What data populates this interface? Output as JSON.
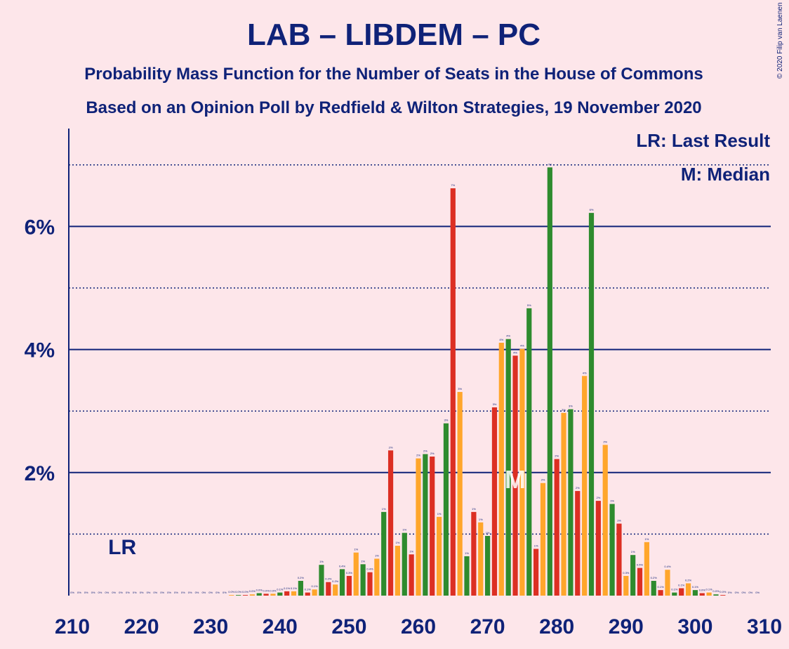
{
  "title": "LAB – LIBDEM – PC",
  "subtitle1": "Probability Mass Function for the Number of Seats in the House of Commons",
  "subtitle2": "Based on an Opinion Poll by Redfield & Wilton Strategies, 19 November 2020",
  "copyright": "© 2020 Filip van Laenen",
  "legend": {
    "lr": "LR: Last Result",
    "m": "M: Median"
  },
  "markers": {
    "lr_label": "LR",
    "lr_seats": 216,
    "m_label": "M",
    "median_seats": 274
  },
  "colors": {
    "background": "#fde6ea",
    "axis": "#0f2278",
    "green": "#2e8b2e",
    "red": "#dc2f23",
    "orange": "#ffa62b"
  },
  "chart_data": {
    "type": "bar",
    "xlabel": "",
    "ylabel": "",
    "xlim": [
      210,
      310
    ],
    "ylim": [
      0,
      7.5
    ],
    "yticks": [
      2,
      4,
      6
    ],
    "ytick_labels": [
      "2%",
      "4%",
      "6%"
    ],
    "xticks": [
      210,
      220,
      230,
      240,
      250,
      260,
      270,
      280,
      290,
      300,
      310
    ],
    "grid": true,
    "legend_position": "top-right",
    "color_cycle": [
      "green",
      "red",
      "orange"
    ],
    "x": [
      210,
      211,
      212,
      213,
      214,
      215,
      216,
      217,
      218,
      219,
      220,
      221,
      222,
      223,
      224,
      225,
      226,
      227,
      228,
      229,
      230,
      231,
      232,
      233,
      234,
      235,
      236,
      237,
      238,
      239,
      240,
      241,
      242,
      243,
      244,
      245,
      246,
      247,
      248,
      249,
      250,
      251,
      252,
      253,
      254,
      255,
      256,
      257,
      258,
      259,
      260,
      261,
      262,
      263,
      264,
      265,
      266,
      267,
      268,
      269,
      270,
      271,
      272,
      273,
      274,
      275,
      276,
      277,
      278,
      279,
      280,
      281,
      282,
      283,
      284,
      285,
      286,
      287,
      288,
      289,
      290,
      291,
      292,
      293,
      294,
      295,
      296,
      297,
      298,
      299,
      300,
      301,
      302,
      303,
      304,
      305,
      306,
      307,
      308,
      309
    ],
    "values": [
      0,
      0,
      0,
      0,
      0,
      0,
      0,
      0,
      0,
      0,
      0,
      0,
      0,
      0,
      0,
      0,
      0,
      0,
      0,
      0,
      0,
      0,
      0,
      0.01,
      0.01,
      0.01,
      0.02,
      0.04,
      0.03,
      0.03,
      0.05,
      0.07,
      0.07,
      0.24,
      0.05,
      0.1,
      0.5,
      0.22,
      0.18,
      0.43,
      0.32,
      0.7,
      0.51,
      0.38,
      0.6,
      1.36,
      2.36,
      0.81,
      1.02,
      0.67,
      2.23,
      2.3,
      2.26,
      1.28,
      2.8,
      6.62,
      3.31,
      0.64,
      1.36,
      1.19,
      0.97,
      3.06,
      4.11,
      4.17,
      3.9,
      4.01,
      4.67,
      0.76,
      1.83,
      6.96,
      2.22,
      2.97,
      3.03,
      1.7,
      3.57,
      6.22,
      1.54,
      2.45,
      1.49,
      1.17,
      0.32,
      0.66,
      0.45,
      0.87,
      0.24,
      0.09,
      0.42,
      0.05,
      0.12,
      0.2,
      0.09,
      0.04,
      0.05,
      0.02,
      0.01,
      0,
      0,
      0,
      0,
      0
    ]
  }
}
